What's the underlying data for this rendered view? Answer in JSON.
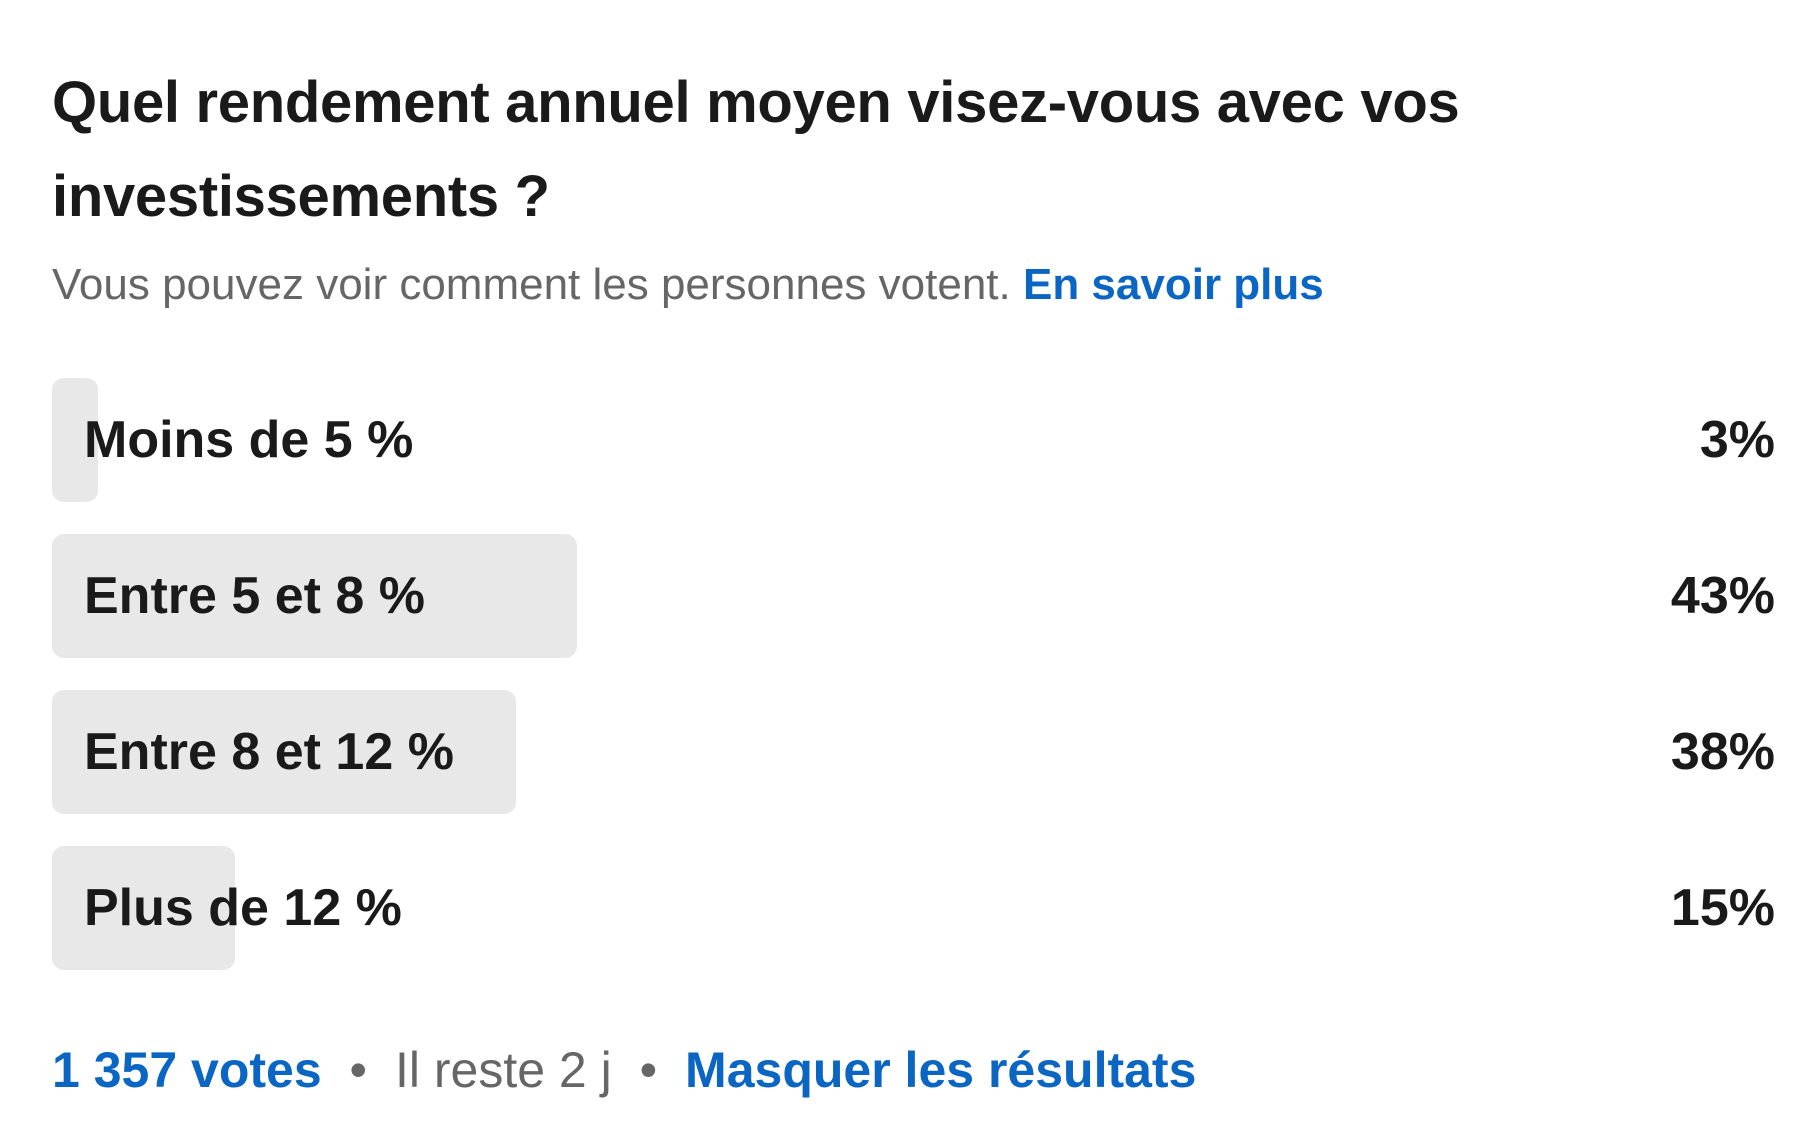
{
  "poll": {
    "question": "Quel rendement annuel moyen visez-vous avec vos investissements ?",
    "subtitle_text": "Vous pouvez voir comment les personnes votent.",
    "learn_more_label": "En savoir plus",
    "options": [
      {
        "label": "Moins de 5 %",
        "percent_label": "3%",
        "percent": 3
      },
      {
        "label": "Entre 5 et 8 %",
        "percent_label": "43%",
        "percent": 43
      },
      {
        "label": "Entre 8 et 12 %",
        "percent_label": "38%",
        "percent": 38
      },
      {
        "label": "Plus de 12 %",
        "percent_label": "15%",
        "percent": 15
      }
    ],
    "footer": {
      "votes_label": "1 357 votes",
      "separator": "•",
      "time_left": "Il reste 2 j",
      "hide_results_label": "Masquer les résultats"
    }
  },
  "colors": {
    "accent": "#0a66c2",
    "bar": "#e8e8e8",
    "text": "#1a1a1a",
    "muted": "#666666"
  }
}
